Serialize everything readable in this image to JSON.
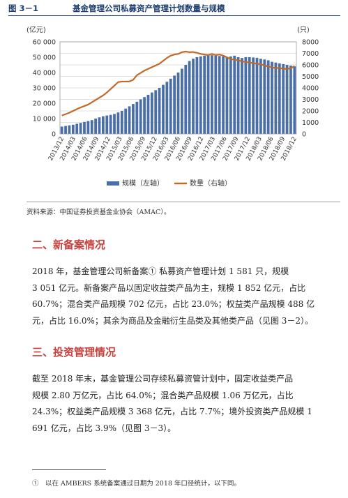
{
  "figure": {
    "number": "图 3－1",
    "title": "基金管理公司私募资产管理计划数量与规模"
  },
  "chart_data": {
    "type": "bar+line",
    "left_unit": "(亿元)",
    "right_unit": "(只)",
    "left_ticks": [
      "0",
      "10 000",
      "20 000",
      "30 000",
      "40 000",
      "50 000",
      "60 000"
    ],
    "right_ticks": [
      "0",
      "1000",
      "2000",
      "3000",
      "4000",
      "5000",
      "6000",
      "7000",
      "8000"
    ],
    "left_ylim": [
      0,
      60000
    ],
    "right_ylim": [
      0,
      8000
    ],
    "x_tick_labels": [
      "2013/12",
      "2014/03",
      "2014/06",
      "2014/09",
      "2014/12",
      "2015/03",
      "2015/06",
      "2015/09",
      "2015/12",
      "2016/03",
      "2016/06",
      "2016/09",
      "2016/12",
      "2017/03",
      "2017/06",
      "2017/09",
      "2017/12",
      "2018/03",
      "2018/06",
      "2018/09",
      "2018/12"
    ],
    "grid": true,
    "legend_position": "bottom",
    "series": [
      {
        "name": "规模（左轴）",
        "type": "bar",
        "color": "#4a6fa8",
        "values": [
          4800,
          5200,
          5600,
          6000,
          6600,
          7200,
          7800,
          8400,
          9000,
          10000,
          10800,
          11500,
          12000,
          12400,
          13000,
          14000,
          15000,
          16500,
          18000,
          19500,
          21000,
          22500,
          24000,
          25500,
          27000,
          28500,
          30000,
          32000,
          34000,
          36000,
          38000,
          40000,
          42500,
          45000,
          47500,
          49000,
          50000,
          50500,
          51000,
          51200,
          51300,
          51000,
          50800,
          50500,
          50200,
          50500,
          51000,
          50000,
          49500,
          50000,
          50000,
          49800,
          49600,
          49000,
          48500,
          48000,
          47000,
          46500,
          46000,
          45500,
          45000,
          44500,
          44000
        ]
      },
      {
        "name": "数量（右轴）",
        "type": "line",
        "color": "#c06a2a",
        "values": [
          1600,
          1720,
          1840,
          2000,
          2150,
          2300,
          2420,
          2550,
          2750,
          2950,
          3150,
          3350,
          3600,
          3900,
          4200,
          4500,
          4550,
          4550,
          4560,
          4700,
          5100,
          5300,
          5500,
          5650,
          5800,
          5950,
          6100,
          6350,
          6600,
          6800,
          6900,
          6950,
          7100,
          7150,
          7100,
          7120,
          7050,
          6950,
          6900,
          6850,
          6950,
          6850,
          6900,
          6800,
          6650,
          6500,
          6450,
          6400,
          6300,
          6250,
          6200,
          6150,
          6100,
          6050,
          5950,
          5850,
          5800,
          5700,
          5750,
          5650,
          5650,
          5700,
          5900
        ]
      }
    ]
  },
  "source": "资料来源：中国证券投资基金业协会（AMAC）。",
  "section1": {
    "heading": "二、新备案情况",
    "lines": [
      "2018 年，基金管理公司新备案① 私募资产管理计划 1 581 只，规模",
      "3 051 亿元。新备案产品以固定收益类产品为主，规模 1 852 亿元，占比",
      "60.7%；混合类产品规模 702 亿元，占比 23.0%；权益类产品规模 488 亿",
      "元，占比 16.0%；其余为商品及金融衍生品类及其他类产品（见图 3－2）。"
    ]
  },
  "section2": {
    "heading": "三、投资管理情况",
    "lines": [
      "截至 2018 年末，基金管理公司存续私募资管计划中，固定收益类产品",
      "规模 2.80 万亿元，占比 64.0%；混合类产品规模 1.06 万亿元，占比",
      "24.3%；权益类产品规模 3 368 亿元，占比 7.7%；境外投资类产品规模 1",
      "691 亿元，占比 3.9%（见图 3－3）。"
    ]
  },
  "footnote": "①　以在 AMBERS 系统备案通过日期为 2018 年口径统计，以下同。"
}
